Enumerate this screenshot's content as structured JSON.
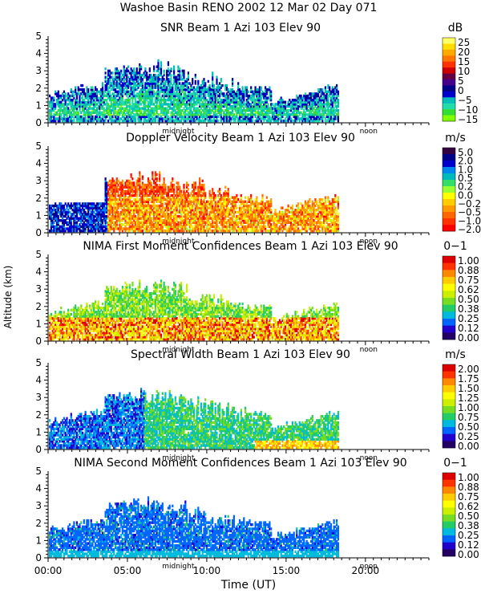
{
  "chart_data": {
    "type": "heatmap",
    "title": "Washoe Basin RENO 2002  12 Mar 02 Day 071",
    "xlabel": "Time (UT)",
    "ylabel": "Altitude (km)",
    "x_ticks": [
      "00:00",
      "05:00",
      "10:00",
      "15:00",
      "20:00"
    ],
    "xlim_hours": [
      0,
      24
    ],
    "ylim_km": [
      0,
      5
    ],
    "y_ticks": [
      "0",
      "1",
      "2",
      "3",
      "4",
      "5"
    ],
    "day_markers": [
      "midnight",
      "noon"
    ],
    "panels": [
      {
        "id": "snr",
        "title": "SNR Beam 1 Azi 103 Elev 90",
        "unit": "dB",
        "colorbar_labels": [
          "25",
          "20",
          "15",
          "10",
          "5",
          "0",
          "−5",
          "−10",
          "−15"
        ],
        "colors": [
          "#7fff00",
          "#33dd33",
          "#22ddaa",
          "#00bbbb",
          "#0000cc",
          "#000088",
          "#440088",
          "#660044",
          "#cc0000",
          "#ff3300",
          "#ff7700",
          "#ffaa00",
          "#ffdd00",
          "#ffff66"
        ]
      },
      {
        "id": "doppler",
        "title": "Doppler Velocity Beam 1 Azi 103 Elev 90",
        "unit": "m/s",
        "colorbar_labels": [
          "5.0",
          "2.0",
          "1.0",
          "0.5",
          "0.2",
          "0.0",
          "−0.2",
          "−0.5",
          "−1.0",
          "−2.0"
        ],
        "colors": [
          "#ff0000",
          "#ff3300",
          "#ff6600",
          "#ff9900",
          "#ffcc00",
          "#ffff00",
          "#99ff33",
          "#33dd66",
          "#00bbbb",
          "#0088ee",
          "#0000cc",
          "#000088",
          "#330044"
        ]
      },
      {
        "id": "nima1",
        "title": "NIMA First Moment Confidences Beam 1 Azi 103 Elev 90",
        "unit": "0−1",
        "colorbar_labels": [
          "1.00",
          "0.88",
          "0.75",
          "0.62",
          "0.50",
          "0.38",
          "0.25",
          "0.12",
          "0.00"
        ],
        "colors": [
          "#220066",
          "#2200cc",
          "#0066ff",
          "#00bbdd",
          "#22cc66",
          "#77dd22",
          "#ccee00",
          "#ffff00",
          "#ffcc00",
          "#ff8800",
          "#ff3300",
          "#dd0000"
        ]
      },
      {
        "id": "width",
        "title": "Spectral Width Beam 1 Azi 103 Elev 90",
        "unit": "m/s",
        "colorbar_labels": [
          "2.00",
          "1.75",
          "1.50",
          "1.25",
          "1.00",
          "0.75",
          "0.50",
          "0.25",
          "0.00"
        ],
        "colors": [
          "#220066",
          "#2200cc",
          "#0066ff",
          "#00bbdd",
          "#22cc66",
          "#77dd22",
          "#ccee00",
          "#ffff00",
          "#ffcc00",
          "#ff8800",
          "#ff3300",
          "#dd0000"
        ]
      },
      {
        "id": "nima2",
        "title": "NIMA Second Moment Confidences Beam 1 Azi 103 Elev 90",
        "unit": "0−1",
        "colorbar_labels": [
          "1.00",
          "0.88",
          "0.75",
          "0.62",
          "0.50",
          "0.38",
          "0.25",
          "0.12",
          "0.00"
        ],
        "colors": [
          "#220066",
          "#2200cc",
          "#0066ff",
          "#00bbdd",
          "#22cc66",
          "#77dd22",
          "#ccee00",
          "#ffff00",
          "#ffcc00",
          "#ff8800",
          "#ff3300",
          "#dd0000"
        ]
      }
    ]
  }
}
